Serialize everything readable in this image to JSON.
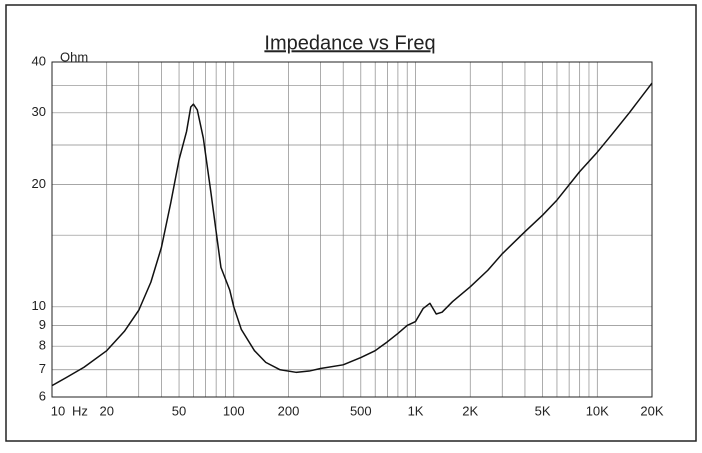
{
  "chart_data": {
    "type": "line",
    "title": "Impedance vs Freq",
    "x_label": "Hz",
    "y_label": "Ohm",
    "xscale": "log",
    "yscale": "log",
    "xlim": [
      10,
      20000
    ],
    "ylim": [
      6,
      40
    ],
    "xticks": [
      10,
      20,
      50,
      100,
      200,
      500,
      {
        "value": 1000,
        "label": "1K"
      },
      {
        "value": 2000,
        "label": "2K"
      },
      {
        "value": 5000,
        "label": "5K"
      },
      {
        "value": 10000,
        "label": "10K"
      },
      {
        "value": 20000,
        "label": "20K"
      }
    ],
    "yticks": [
      6,
      7,
      8,
      9,
      10,
      20,
      30,
      40
    ],
    "xgrid": [
      10,
      20,
      30,
      40,
      50,
      60,
      70,
      80,
      90,
      100,
      200,
      300,
      400,
      500,
      600,
      700,
      800,
      900,
      1000,
      2000,
      3000,
      4000,
      5000,
      6000,
      7000,
      8000,
      9000,
      10000,
      20000
    ],
    "ygrid": [
      6,
      7,
      8,
      9,
      10,
      15,
      20,
      25,
      30,
      35,
      40
    ],
    "grid": true,
    "color": "#111111",
    "x": [
      10,
      12,
      15,
      20,
      25,
      30,
      35,
      40,
      45,
      50,
      55,
      58,
      60,
      63,
      68,
      75,
      85,
      95,
      100,
      110,
      130,
      150,
      180,
      220,
      260,
      300,
      400,
      500,
      600,
      700,
      800,
      900,
      1000,
      1100,
      1200,
      1300,
      1400,
      1600,
      2000,
      2500,
      3000,
      4000,
      5000,
      6000,
      8000,
      10000,
      12000,
      15000,
      20000
    ],
    "values": [
      6.4,
      6.7,
      7.1,
      7.8,
      8.7,
      9.8,
      11.5,
      14,
      18,
      23,
      27,
      31,
      31.5,
      30.5,
      26,
      19,
      12.5,
      11,
      10,
      8.8,
      7.8,
      7.3,
      7.0,
      6.9,
      6.95,
      7.05,
      7.2,
      7.5,
      7.8,
      8.2,
      8.6,
      9.0,
      9.2,
      9.9,
      10.2,
      9.6,
      9.7,
      10.3,
      11.2,
      12.3,
      13.5,
      15.3,
      16.8,
      18.3,
      21.5,
      24,
      26.5,
      30,
      35.5
    ]
  }
}
